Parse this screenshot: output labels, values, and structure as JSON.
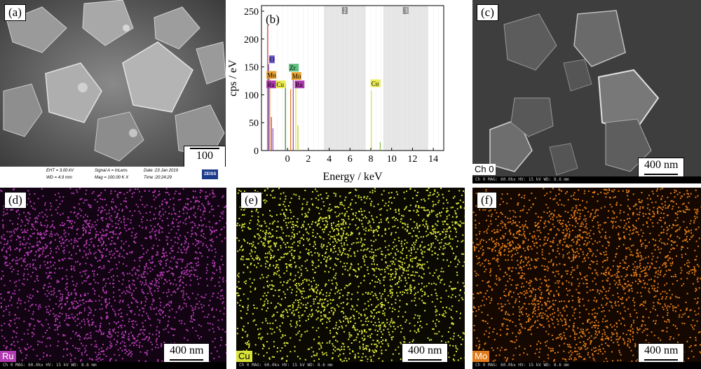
{
  "panels": {
    "a": {
      "label": "(a)",
      "scale": "100 nm",
      "info": {
        "eht": "EHT = 3.00 kV",
        "wd": "WD = 4.9 mm",
        "signal": "Signal A = InLens",
        "mag": "Mag = 100.00 K X",
        "date": "Date :23 Jan 2019",
        "time": "Time :20:24:29",
        "brand": "ZEISS"
      }
    },
    "b": {
      "label": "(b)"
    },
    "c": {
      "label": "(c)",
      "scale": "400 nm",
      "channel": "Ch 0",
      "footer": "Ch 0   MAG: 60.0kx   HV: 15 kV   WD: 8.6 mm"
    },
    "d": {
      "label": "(d)",
      "scale": "400 nm",
      "channel": "Ru",
      "footer": "Ch 0   MAG: 60.0kx   HV: 15 kV   WD: 8.6 mm"
    },
    "e": {
      "label": "(e)",
      "scale": "400 nm",
      "channel": "Cu",
      "footer": "Ch 0   MAG: 60.0kx   HV: 15 kV   WD: 8.6 mm"
    },
    "f": {
      "label": "(f)",
      "scale": "400 nm",
      "channel": "Mo",
      "footer": "Ch 0   MAG: 60.0kx   HV: 15 kV   WD: 8.6 mm"
    }
  },
  "colors": {
    "ru": "#b03ab0",
    "cu": "#d8e23a",
    "mo": "#e07a1a"
  },
  "chart_data": {
    "type": "bar",
    "xlabel": "Energy / keV",
    "ylabel": "cps / eV",
    "xlim": [
      -2.5,
      15
    ],
    "ylim": [
      0,
      260
    ],
    "xticks": [
      0,
      2,
      4,
      6,
      8,
      10,
      12,
      14
    ],
    "yticks": [
      0,
      50,
      100,
      150,
      200,
      250
    ],
    "shaded_regions": [
      {
        "label": "2",
        "from": 3.5,
        "to": 7.5
      },
      {
        "label": "3",
        "from": 9.2,
        "to": 13.5
      }
    ],
    "peaks": [
      {
        "x": -1.9,
        "y": 225
      },
      {
        "x": -1.8,
        "y": 155
      },
      {
        "x": -1.7,
        "y": 130
      },
      {
        "x": -1.55,
        "y": 60
      },
      {
        "x": -1.4,
        "y": 40
      },
      {
        "x": -0.2,
        "y": 120
      },
      {
        "x": 0.3,
        "y": 110
      },
      {
        "x": 0.55,
        "y": 135
      },
      {
        "x": 0.8,
        "y": 115
      },
      {
        "x": 1.0,
        "y": 45
      },
      {
        "x": 8.05,
        "y": 108
      },
      {
        "x": 8.9,
        "y": 15
      }
    ],
    "peak_labels": [
      {
        "text": "O",
        "x": -1.7,
        "y": 158
      },
      {
        "text": "Mo",
        "x": -1.95,
        "y": 130
      },
      {
        "text": "Ru",
        "x": -1.95,
        "y": 113
      },
      {
        "text": "Cu",
        "x": -1.05,
        "y": 113
      },
      {
        "text": "Zr",
        "x": 0.2,
        "y": 143
      },
      {
        "text": "Mo",
        "x": 0.45,
        "y": 128
      },
      {
        "text": "Ru",
        "x": 0.75,
        "y": 113
      },
      {
        "text": "Cu",
        "x": 8.05,
        "y": 115
      }
    ]
  }
}
